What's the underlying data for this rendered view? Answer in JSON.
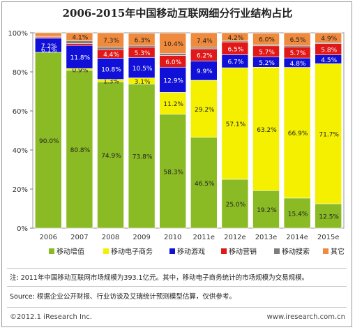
{
  "title": "2006-2015年中国移动互联网细分行业结构占比",
  "chart_data": {
    "type": "bar",
    "stacked": true,
    "categories": [
      "2006",
      "2007",
      "2008",
      "2009",
      "2010",
      "2011e",
      "2012e",
      "2013e",
      "2014e",
      "2015e"
    ],
    "series": [
      {
        "name": "移动增值",
        "color": "#8aba24",
        "values": [
          90.0,
          80.8,
          74.9,
          73.8,
          58.3,
          46.5,
          25.0,
          19.2,
          15.4,
          12.5
        ],
        "labels": [
          "90.0%",
          "80.8%",
          "74.9%",
          "73.8%",
          "58.3%",
          "46.5%",
          "25.0%",
          "19.2%",
          "15.4%",
          "12.5%"
        ]
      },
      {
        "name": "移动电子商务",
        "color": "#f4f000",
        "values": [
          0,
          0.9,
          1.3,
          3.1,
          11.2,
          29.2,
          57.1,
          63.2,
          66.9,
          71.7
        ],
        "labels": [
          "",
          "0.9%",
          "1.3%",
          "3.1%",
          "11.2%",
          "29.2%",
          "57.1%",
          "63.2%",
          "66.9%",
          "71.7%"
        ]
      },
      {
        "name": "移动游戏",
        "color": "#1010d8",
        "values": [
          7.2,
          11.8,
          10.8,
          10.5,
          12.9,
          9.9,
          6.7,
          5.2,
          4.8,
          4.5
        ],
        "labels": [
          "7.2%",
          "11.8%",
          "10.8%",
          "10.5%",
          "12.9%",
          "9.9%",
          "6.7%",
          "5.2%",
          "4.8%",
          "4.5%"
        ]
      },
      {
        "name": "移动营销",
        "color": "#e01818",
        "values": [
          0.6,
          1.0,
          4.4,
          5.3,
          6.0,
          6.2,
          6.5,
          5.7,
          5.7,
          5.8
        ],
        "labels": [
          "",
          "",
          "4.4%",
          "5.3%",
          "6.0%",
          "6.2%",
          "6.5%",
          "5.7%",
          "5.7%",
          "5.8%"
        ]
      },
      {
        "name": "移动搜索",
        "color": "#7d7d7d",
        "values": [
          0.4,
          1.4,
          1.3,
          0.8,
          1.1,
          0.8,
          0.5,
          0.6,
          0.7,
          0.6
        ],
        "labels": [
          "",
          "",
          "",
          "",
          "",
          "",
          "",
          "",
          "",
          ""
        ]
      },
      {
        "name": "其它",
        "color": "#f08a3c",
        "values": [
          1.8,
          4.1,
          7.3,
          6.3,
          10.4,
          7.4,
          4.2,
          6.0,
          6.5,
          4.9
        ],
        "labels": [
          "",
          "4.1%",
          "7.3%",
          "6.3%",
          "10.4%",
          "7.4%",
          "4.2%",
          "6.0%",
          "6.5%",
          "4.9%"
        ]
      }
    ],
    "inline_labels": [
      "6.1%"
    ],
    "yticks": [
      "0%",
      "20%",
      "40%",
      "60%",
      "80%",
      "100%"
    ],
    "ylim": [
      0,
      100
    ],
    "legend_position": "bottom"
  },
  "note": "注: 2011年中国移动互联网市场规模为393.1亿元。其中，移动电子商务统计的市场规模为交易规模。",
  "source": "Source: 根据企业公开财报、行业访谈及艾瑞统计预测模型估算，仅供参考。",
  "footer_left": "©2012.1 iResearch Inc.",
  "footer_right": "www.iresearch.com.cn"
}
